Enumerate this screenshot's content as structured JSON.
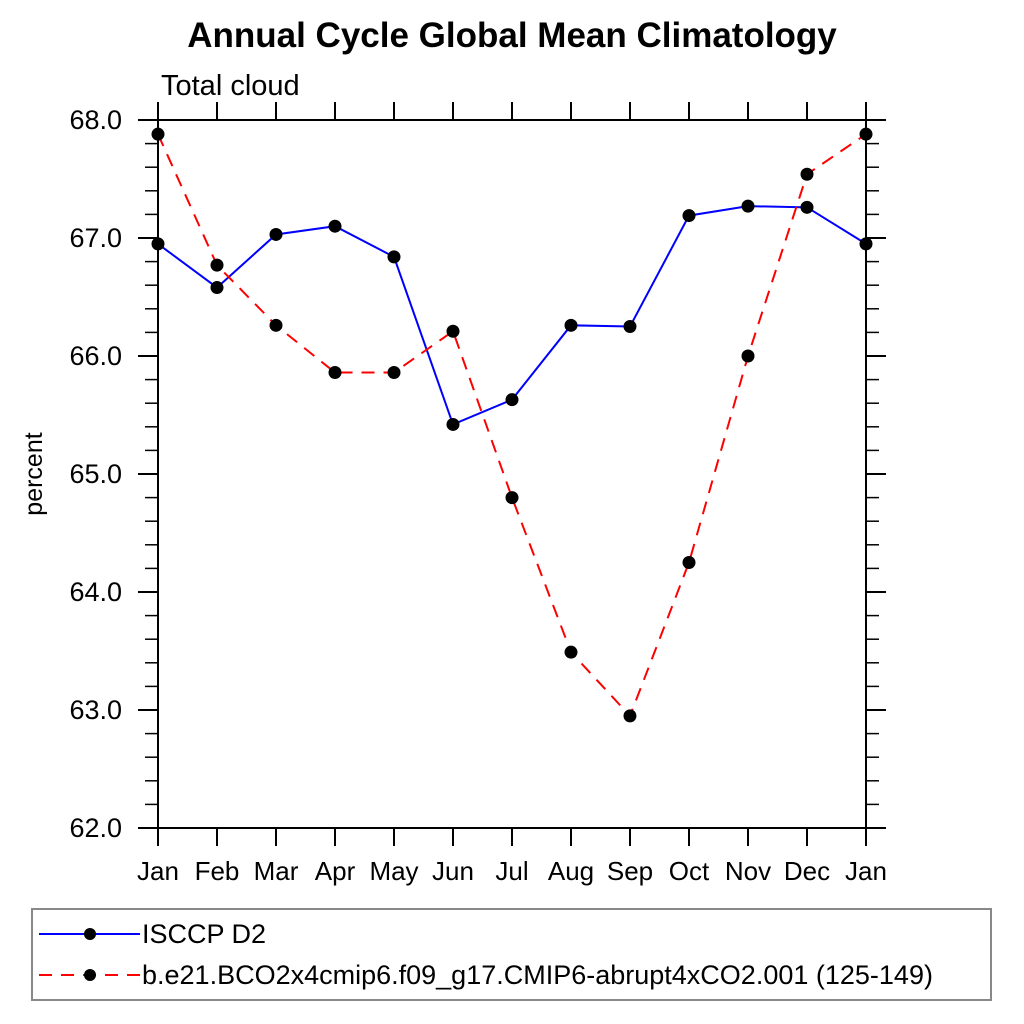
{
  "chart_data": {
    "type": "line",
    "title": "Annual Cycle Global Mean Climatology",
    "subtitle": "Total cloud",
    "xlabel": "",
    "ylabel": "percent",
    "categories": [
      "Jan",
      "Feb",
      "Mar",
      "Apr",
      "May",
      "Jun",
      "Jul",
      "Aug",
      "Sep",
      "Oct",
      "Nov",
      "Dec",
      "Jan"
    ],
    "ylim": [
      62.0,
      68.0
    ],
    "ytick_major_interval": 1.0,
    "ytick_minor_interval": 0.2,
    "ytick_label_format": "one-decimal",
    "grid": false,
    "legend_position": "bottom-left-box",
    "axis_color": "#000000",
    "marker": "filled-circle",
    "marker_color": "#000000",
    "series": [
      {
        "name": "ISCCP D2",
        "color": "#0000ff",
        "line_style": "solid",
        "values": [
          66.95,
          66.58,
          67.03,
          67.1,
          66.84,
          65.42,
          65.63,
          66.26,
          66.25,
          67.19,
          67.27,
          67.26,
          66.95
        ]
      },
      {
        "name": "b.e21.BCO2x4cmip6.f09_g17.CMIP6-abrupt4xCO2.001 (125-149)",
        "color": "#ff0000",
        "line_style": "dashed",
        "values": [
          67.88,
          66.77,
          66.26,
          65.86,
          65.86,
          66.21,
          64.8,
          63.49,
          62.95,
          64.25,
          66.0,
          67.54,
          67.88
        ]
      }
    ]
  }
}
